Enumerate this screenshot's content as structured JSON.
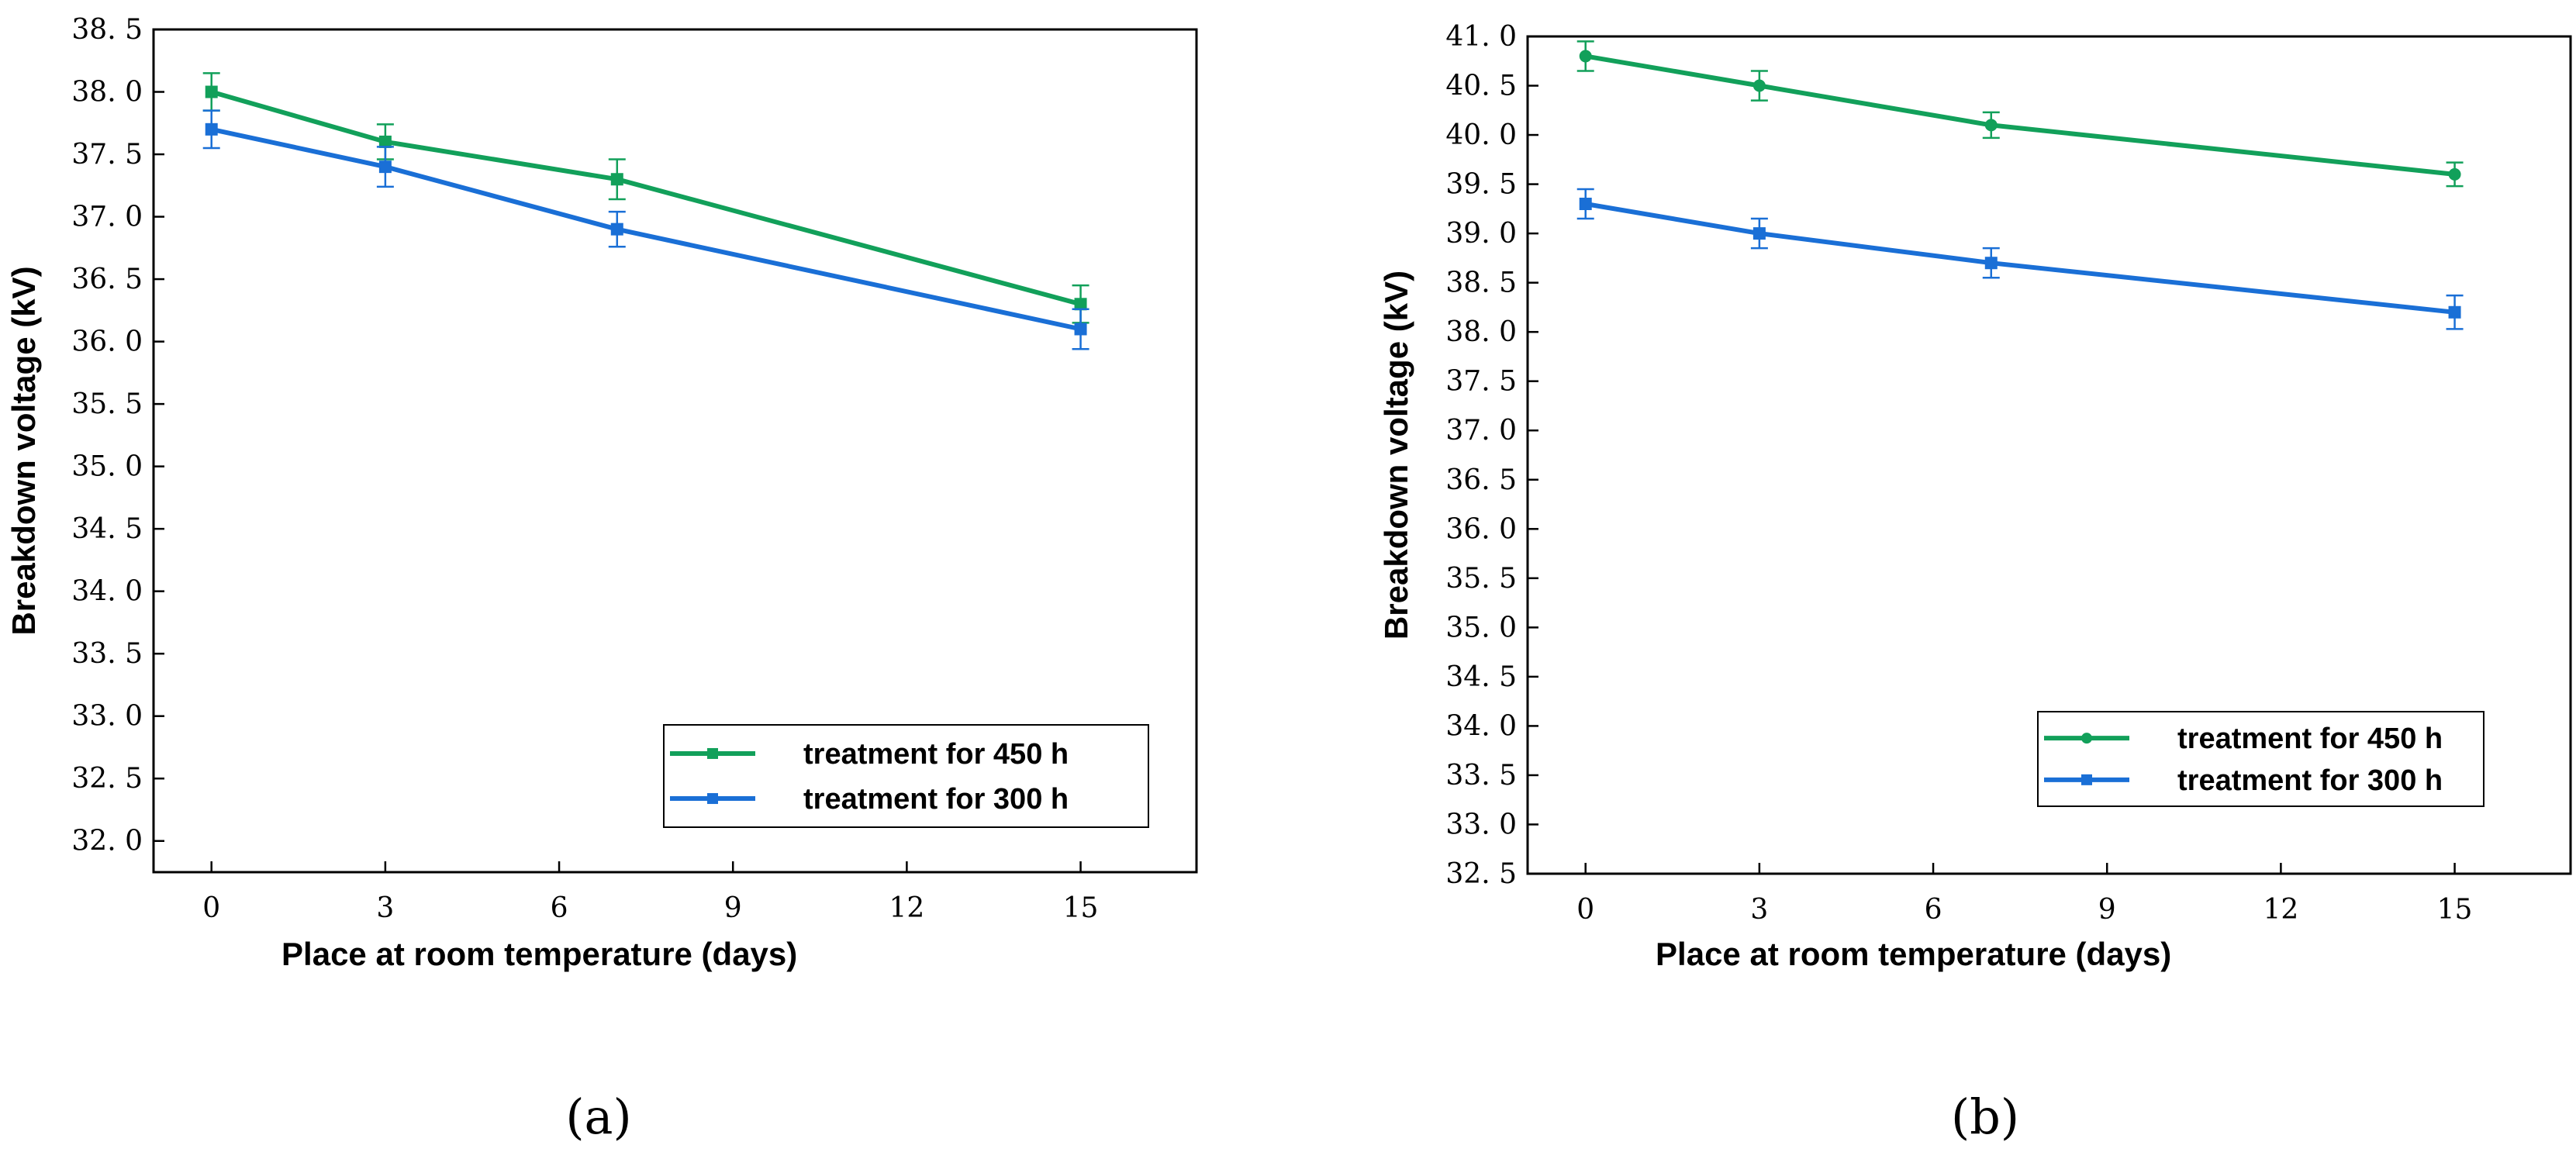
{
  "chart_data": [
    {
      "type": "line",
      "panel_label": "(a)",
      "xlabel": "Place at room temperature (days)",
      "ylabel": "Breakdown voltage (kV)",
      "xlim": [
        -1,
        17
      ],
      "ylim": [
        31.75,
        38.5
      ],
      "xticks": [
        0,
        3,
        6,
        9,
        12,
        15
      ],
      "xtick_labels": [
        "0",
        "3",
        "6",
        "9",
        "12",
        "15"
      ],
      "yticks": [
        32.0,
        32.5,
        33.0,
        33.5,
        34.0,
        34.5,
        35.0,
        35.5,
        36.0,
        36.5,
        37.0,
        37.5,
        38.0,
        38.5
      ],
      "ytick_labels": [
        "32. 0",
        "32. 5",
        "33. 0",
        "33. 5",
        "34. 0",
        "34. 5",
        "35. 0",
        "35. 5",
        "36. 0",
        "36. 5",
        "37. 0",
        "37. 5",
        "38. 0",
        "38. 5"
      ],
      "legend_position": "bottom-right",
      "series": [
        {
          "name": "treatment for 450 h",
          "color": "#12a05a",
          "marker": "square",
          "x": [
            0,
            3,
            7,
            15
          ],
          "y": [
            38.0,
            37.6,
            37.3,
            36.3
          ],
          "err": [
            0.15,
            0.14,
            0.16,
            0.15
          ]
        },
        {
          "name": "treatment for 300 h",
          "color": "#1a6fd6",
          "marker": "square",
          "x": [
            0,
            3,
            7,
            15
          ],
          "y": [
            37.7,
            37.4,
            36.9,
            36.1
          ],
          "err": [
            0.15,
            0.16,
            0.14,
            0.16
          ]
        }
      ]
    },
    {
      "type": "line",
      "panel_label": "(b)",
      "xlabel": "Place at room temperature (days)",
      "ylabel": "Breakdown voltage (kV)",
      "xlim": [
        -1,
        17
      ],
      "ylim": [
        32.5,
        41.0
      ],
      "xticks": [
        0,
        3,
        6,
        9,
        12,
        15
      ],
      "xtick_labels": [
        "0",
        "3",
        "6",
        "9",
        "12",
        "15"
      ],
      "yticks": [
        32.5,
        33.0,
        33.5,
        34.0,
        34.5,
        35.0,
        35.5,
        36.0,
        36.5,
        37.0,
        37.5,
        38.0,
        38.5,
        39.0,
        39.5,
        40.0,
        40.5,
        41.0
      ],
      "ytick_labels": [
        "32. 5",
        "33. 0",
        "33. 5",
        "34. 0",
        "34. 5",
        "35. 0",
        "35. 5",
        "36. 0",
        "36. 5",
        "37. 0",
        "37. 5",
        "38. 0",
        "38. 5",
        "39. 0",
        "39. 5",
        "40. 0",
        "40. 5",
        "41. 0"
      ],
      "legend_position": "bottom-right",
      "series": [
        {
          "name": "treatment for 450 h",
          "color": "#12a05a",
          "marker": "circle",
          "x": [
            0,
            3,
            7,
            15
          ],
          "y": [
            40.8,
            40.5,
            40.1,
            39.6
          ],
          "err": [
            0.15,
            0.15,
            0.13,
            0.12
          ]
        },
        {
          "name": "treatment for 300 h",
          "color": "#1a6fd6",
          "marker": "square",
          "x": [
            0,
            3,
            7,
            15
          ],
          "y": [
            39.3,
            39.0,
            38.7,
            38.2
          ],
          "err": [
            0.15,
            0.15,
            0.15,
            0.17
          ]
        }
      ]
    }
  ]
}
